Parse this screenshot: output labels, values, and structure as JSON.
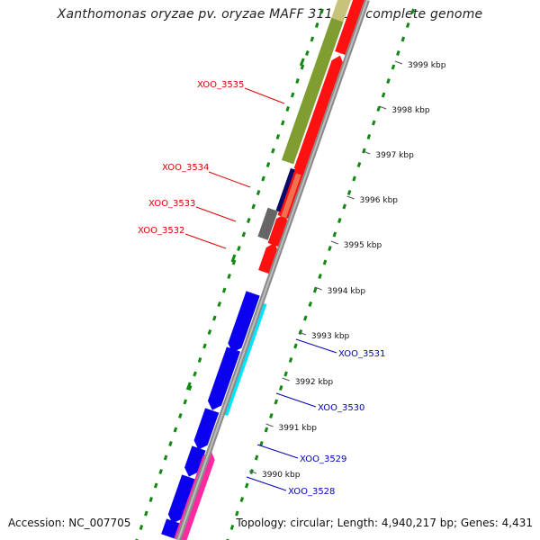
{
  "title": "Xanthomonas oryzae pv. oryzae MAFF 311018, complete genome",
  "footer": {
    "accession": "Accession: NC_007705",
    "topology": "Topology: circular; Length: 4,940,217 bp; Genes: 4,431"
  },
  "colors": {
    "forward_label": "#dd0000",
    "reverse_label": "#0000bb",
    "backbone": "#888888",
    "gc_dots": "#118811"
  },
  "kbp_ticks": [
    {
      "label": "3999 kbp"
    },
    {
      "label": "3998 kbp"
    },
    {
      "label": "3997 kbp"
    },
    {
      "label": "3996 kbp"
    },
    {
      "label": "3995 kbp"
    },
    {
      "label": "3994 kbp"
    },
    {
      "label": "3993 kbp"
    },
    {
      "label": "3992 kbp"
    },
    {
      "label": "3991 kbp"
    },
    {
      "label": "3990 kbp"
    }
  ],
  "gene_labels": [
    {
      "text": "XOO_3535",
      "strand": "forward"
    },
    {
      "text": "XOO_3534",
      "strand": "forward"
    },
    {
      "text": "XOO_3533",
      "strand": "forward"
    },
    {
      "text": "XOO_3532",
      "strand": "forward"
    },
    {
      "text": "XOO_3531",
      "strand": "reverse"
    },
    {
      "text": "XOO_3530",
      "strand": "reverse"
    },
    {
      "text": "XOO_3529",
      "strand": "reverse"
    },
    {
      "text": "XOO_3528",
      "strand": "reverse"
    }
  ]
}
